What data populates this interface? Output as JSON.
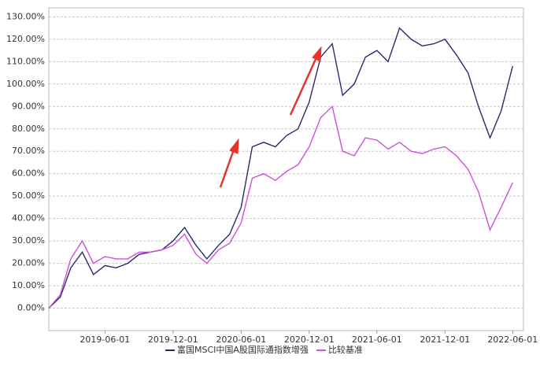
{
  "chart_data": {
    "type": "line",
    "x": [
      "2019-01-01",
      "2019-02-01",
      "2019-03-01",
      "2019-04-01",
      "2019-05-01",
      "2019-06-01",
      "2019-07-01",
      "2019-08-01",
      "2019-09-01",
      "2019-10-01",
      "2019-11-01",
      "2019-12-01",
      "2020-01-01",
      "2020-02-01",
      "2020-03-01",
      "2020-04-01",
      "2020-05-01",
      "2020-06-01",
      "2020-07-01",
      "2020-08-01",
      "2020-09-01",
      "2020-10-01",
      "2020-11-01",
      "2020-12-01",
      "2021-01-01",
      "2021-02-01",
      "2021-03-01",
      "2021-04-01",
      "2021-05-01",
      "2021-06-01",
      "2021-07-01",
      "2021-08-01",
      "2021-09-01",
      "2021-10-01",
      "2021-11-01",
      "2021-12-01",
      "2022-01-01",
      "2022-02-01",
      "2022-03-01",
      "2022-04-01",
      "2022-05-01",
      "2022-06-01"
    ],
    "series": [
      {
        "name": "富国MSCI中国A股国际通指数增强",
        "color": "#2a2a6e",
        "values": [
          0,
          5,
          18,
          25,
          15,
          19,
          18,
          20,
          24,
          25,
          26,
          30,
          36,
          28,
          22,
          28,
          33,
          45,
          72,
          74,
          72,
          77,
          80,
          92,
          112,
          118,
          95,
          100,
          112,
          115,
          110,
          125,
          120,
          117,
          118,
          120,
          113,
          105,
          90,
          76,
          88,
          108
        ]
      },
      {
        "name": "比较基准",
        "color": "#d050d8",
        "values": [
          0,
          6,
          22,
          30,
          20,
          23,
          22,
          22,
          25,
          25,
          26,
          28,
          33,
          24,
          20,
          26,
          29,
          38,
          58,
          60,
          57,
          61,
          64,
          72,
          85,
          90,
          70,
          68,
          76,
          75,
          71,
          74,
          70,
          69,
          71,
          72,
          68,
          62,
          52,
          35,
          45,
          56
        ]
      }
    ],
    "xlim": [
      "2019-01-01",
      "2022-06-30"
    ],
    "xticks": [
      "2019-06-01",
      "2019-12-01",
      "2020-06-01",
      "2020-12-01",
      "2021-06-01",
      "2021-12-01",
      "2022-06-01"
    ],
    "ylim": [
      -10,
      134
    ],
    "yticks": [
      {
        "value": 0,
        "label": "0.00%"
      },
      {
        "value": 10,
        "label": "10.00%"
      },
      {
        "value": 20,
        "label": "20.00%"
      },
      {
        "value": 30,
        "label": "30.00%"
      },
      {
        "value": 40,
        "label": "40.00%"
      },
      {
        "value": 50,
        "label": "50.00%"
      },
      {
        "value": 60,
        "label": "60.00%"
      },
      {
        "value": 70,
        "label": "70.00%"
      },
      {
        "value": 80,
        "label": "80.00%"
      },
      {
        "value": 90,
        "label": "90.00%"
      },
      {
        "value": 100,
        "label": "100.00%"
      },
      {
        "value": 110,
        "label": "110.00%"
      },
      {
        "value": 120,
        "label": "120.00%"
      },
      {
        "value": 130,
        "label": "130.00%"
      }
    ],
    "grid": true
  }
}
